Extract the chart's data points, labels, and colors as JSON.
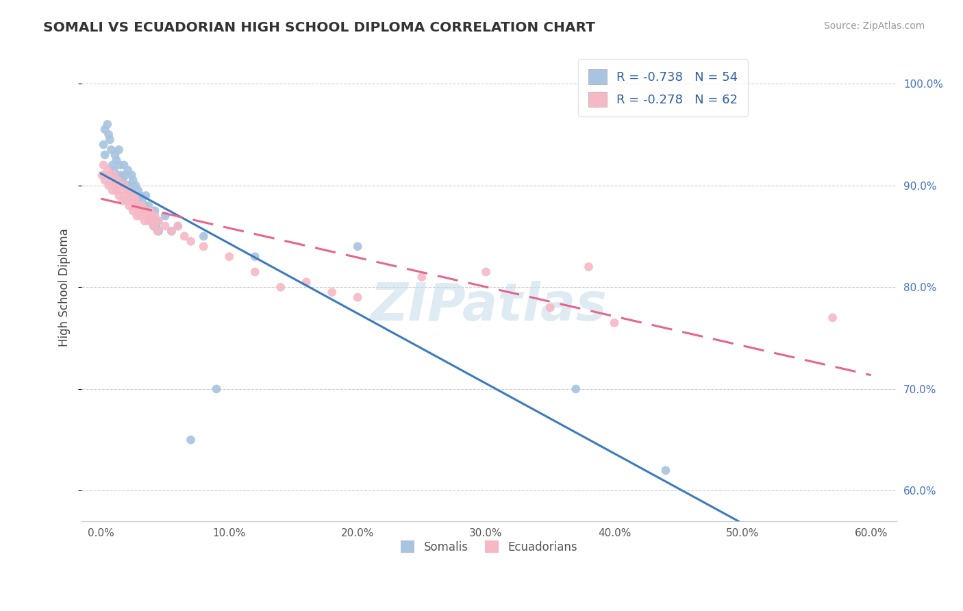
{
  "title": "SOMALI VS ECUADORIAN HIGH SCHOOL DIPLOMA CORRELATION CHART",
  "source": "Source: ZipAtlas.com",
  "xlabel_vals": [
    0.0,
    10.0,
    20.0,
    30.0,
    40.0,
    50.0,
    60.0
  ],
  "ylabel_vals": [
    60.0,
    70.0,
    80.0,
    90.0,
    100.0
  ],
  "ylabel_label": "High School Diploma",
  "somali_R": -0.738,
  "somali_N": 54,
  "ecuadorian_R": -0.278,
  "ecuadorian_N": 62,
  "somali_color": "#a8c4e0",
  "somali_line_color": "#3a7abf",
  "ecuadorian_color": "#f5b8c4",
  "ecuadorian_line_color": "#e8648c",
  "watermark": "ZIPatlas",
  "background_color": "#ffffff",
  "legend_label_somali": "Somalis",
  "legend_label_ecuadorian": "Ecuadorians",
  "somali_x": [
    0.2,
    0.3,
    0.3,
    0.5,
    0.6,
    0.7,
    0.8,
    0.9,
    1.0,
    1.1,
    1.2,
    1.3,
    1.4,
    1.5,
    1.6,
    1.7,
    1.8,
    1.9,
    2.0,
    2.1,
    2.2,
    2.3,
    2.4,
    2.5,
    2.6,
    2.7,
    2.8,
    2.9,
    3.0,
    3.1,
    3.2,
    3.3,
    3.4,
    3.5,
    3.6,
    3.7,
    3.8,
    3.9,
    4.0,
    4.1,
    4.2,
    4.3,
    4.4,
    4.5,
    5.0,
    5.5,
    6.0,
    7.0,
    8.0,
    9.0,
    12.0,
    20.0,
    37.0,
    44.0
  ],
  "somali_y": [
    94.0,
    95.5,
    93.0,
    96.0,
    95.0,
    94.5,
    93.5,
    92.0,
    91.5,
    93.0,
    92.5,
    91.0,
    93.5,
    92.0,
    91.0,
    90.5,
    92.0,
    91.0,
    90.0,
    91.5,
    90.0,
    89.5,
    91.0,
    90.5,
    89.0,
    90.0,
    88.5,
    89.5,
    88.0,
    89.0,
    88.5,
    87.5,
    88.0,
    89.0,
    87.5,
    88.0,
    86.5,
    87.0,
    87.5,
    86.0,
    87.5,
    86.0,
    86.5,
    85.5,
    87.0,
    85.5,
    86.0,
    65.0,
    85.0,
    70.0,
    83.0,
    84.0,
    70.0,
    62.0
  ],
  "ecuadorian_x": [
    0.1,
    0.2,
    0.3,
    0.5,
    0.6,
    0.7,
    0.8,
    0.9,
    1.0,
    1.1,
    1.2,
    1.3,
    1.4,
    1.5,
    1.6,
    1.7,
    1.8,
    1.9,
    2.0,
    2.1,
    2.2,
    2.3,
    2.4,
    2.5,
    2.6,
    2.7,
    2.8,
    2.9,
    3.0,
    3.1,
    3.2,
    3.3,
    3.4,
    3.5,
    3.6,
    3.7,
    3.8,
    3.9,
    4.0,
    4.1,
    4.2,
    4.3,
    4.4,
    4.5,
    5.0,
    5.5,
    6.0,
    6.5,
    7.0,
    8.0,
    10.0,
    12.0,
    14.0,
    16.0,
    18.0,
    20.0,
    25.0,
    30.0,
    35.0,
    38.0,
    40.0,
    57.0
  ],
  "ecuadorian_y": [
    91.0,
    92.0,
    90.5,
    91.5,
    90.0,
    91.0,
    90.5,
    89.5,
    91.0,
    90.0,
    89.5,
    90.5,
    89.0,
    90.0,
    89.5,
    88.5,
    90.0,
    89.0,
    88.5,
    89.5,
    88.0,
    89.0,
    88.5,
    87.5,
    89.0,
    88.5,
    87.0,
    88.0,
    87.5,
    87.0,
    88.0,
    87.5,
    86.5,
    87.5,
    87.0,
    86.5,
    87.5,
    86.5,
    87.0,
    86.0,
    87.0,
    86.5,
    85.5,
    86.5,
    86.0,
    85.5,
    86.0,
    85.0,
    84.5,
    84.0,
    83.0,
    81.5,
    80.0,
    80.5,
    79.5,
    79.0,
    81.0,
    81.5,
    78.0,
    82.0,
    76.5,
    77.0
  ]
}
